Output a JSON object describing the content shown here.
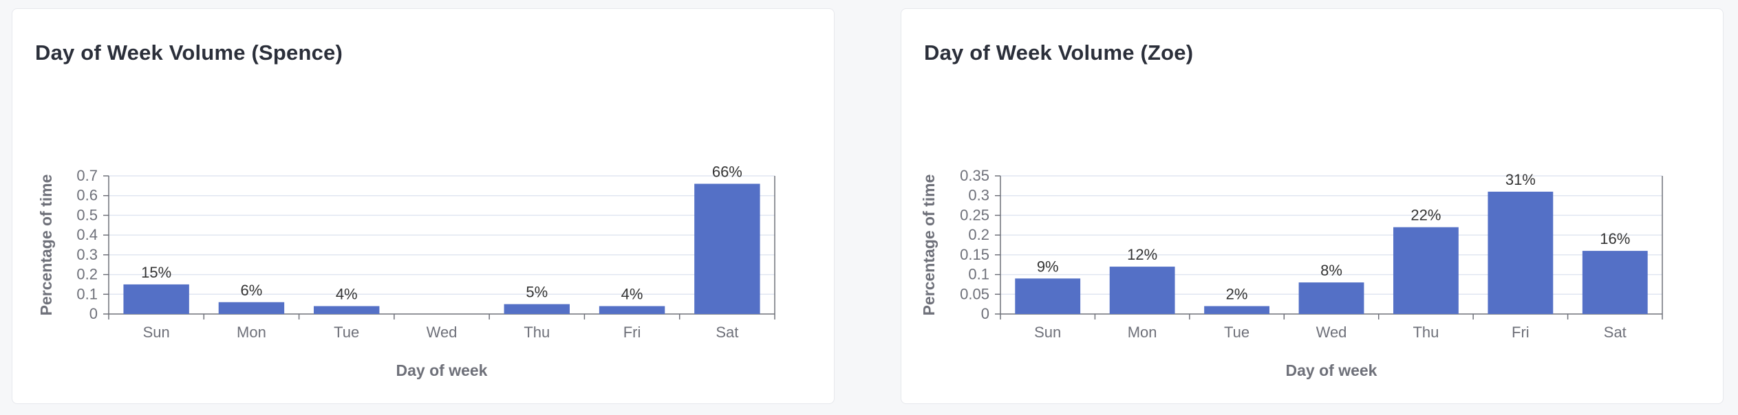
{
  "colors": {
    "bar": "#5470c6",
    "axis": "#6e7079",
    "grid": "#e0e6f1",
    "tick_text": "#6e7079",
    "axis_name": "#6e7079",
    "label_text": "#333333"
  },
  "cards": [
    {
      "title": "Day of Week Volume (Spence)"
    },
    {
      "title": "Day of Week Volume (Zoe)"
    }
  ],
  "chart_data": [
    {
      "type": "bar",
      "title": "Day of Week Volume (Spence)",
      "xlabel": "Day of week",
      "ylabel": "Percentage of time",
      "categories": [
        "Sun",
        "Mon",
        "Tue",
        "Wed",
        "Thu",
        "Fri",
        "Sat"
      ],
      "values": [
        0.15,
        0.06,
        0.04,
        0,
        0.05,
        0.04,
        0.66
      ],
      "data_labels": [
        "15%",
        "6%",
        "4%",
        "",
        "5%",
        "4%",
        "66%"
      ],
      "ylim": [
        0,
        0.7
      ],
      "yticks": [
        "0",
        "0.1",
        "0.2",
        "0.3",
        "0.4",
        "0.5",
        "0.6",
        "0.7"
      ],
      "grid": true,
      "legend": false
    },
    {
      "type": "bar",
      "title": "Day of Week Volume (Zoe)",
      "xlabel": "Day of week",
      "ylabel": "Percentage of time",
      "categories": [
        "Sun",
        "Mon",
        "Tue",
        "Wed",
        "Thu",
        "Fri",
        "Sat"
      ],
      "values": [
        0.09,
        0.12,
        0.02,
        0.08,
        0.22,
        0.31,
        0.16
      ],
      "data_labels": [
        "9%",
        "12%",
        "2%",
        "8%",
        "22%",
        "31%",
        "16%"
      ],
      "ylim": [
        0,
        0.35
      ],
      "yticks": [
        "0",
        "0.05",
        "0.1",
        "0.15",
        "0.2",
        "0.25",
        "0.3",
        "0.35"
      ],
      "grid": true,
      "legend": false
    }
  ]
}
